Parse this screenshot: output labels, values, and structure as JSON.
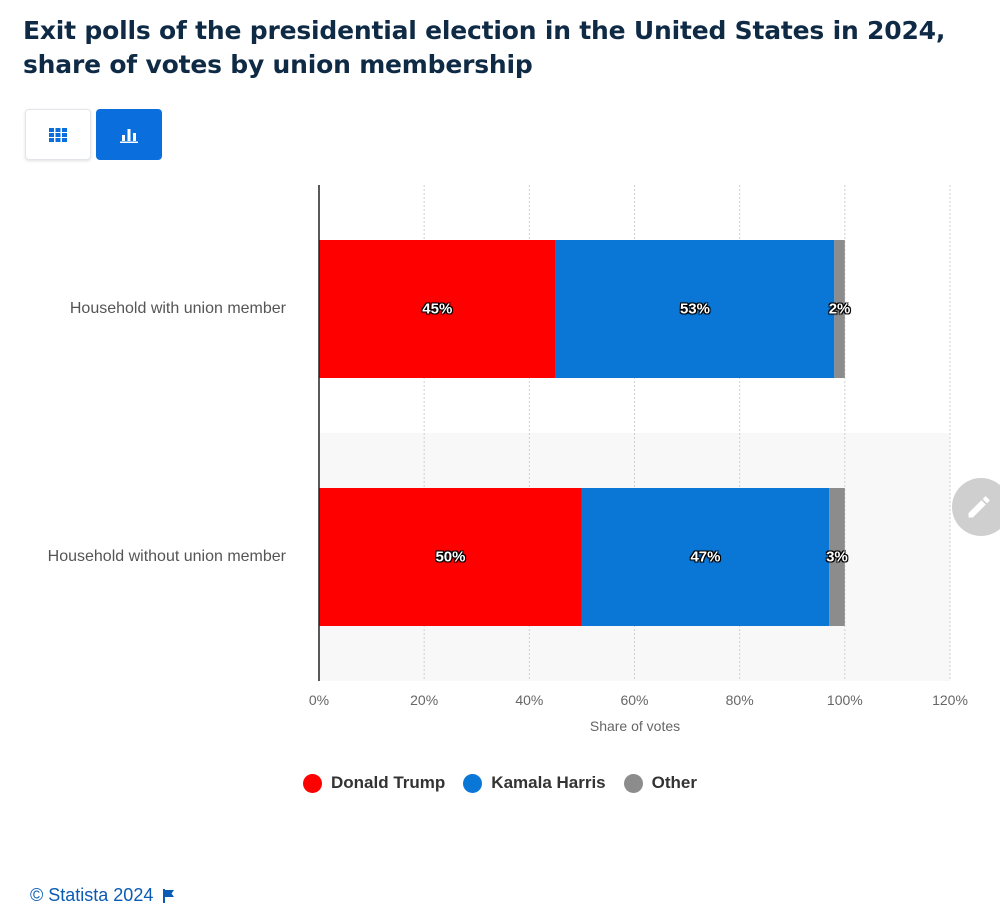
{
  "title": "Exit polls of the presidential election in the United States in 2024, share of votes by union membership",
  "toolbar": {
    "table_view_icon": "grid-icon",
    "chart_view_icon": "bar-chart-icon"
  },
  "edit_icon": "pencil-icon",
  "footer": {
    "copyright": "© Statista 2024",
    "flag_icon": "flag-icon"
  },
  "chart_data": {
    "type": "bar",
    "orientation": "horizontal",
    "stacked": true,
    "title": "Exit polls of the presidential election in the United States in 2024, share of votes by union membership",
    "categories": [
      "Household with union member",
      "Household without union member"
    ],
    "series": [
      {
        "name": "Donald Trump",
        "color": "#ff0000",
        "values": [
          45,
          50
        ],
        "labels": [
          "45%",
          "50%"
        ]
      },
      {
        "name": "Kamala Harris",
        "color": "#0a77d6",
        "values": [
          53,
          47
        ],
        "labels": [
          "53%",
          "47%"
        ]
      },
      {
        "name": "Other",
        "color": "#8c8c8c",
        "values": [
          2,
          3
        ],
        "labels": [
          "2%",
          "3%"
        ]
      }
    ],
    "xlabel": "Share of votes",
    "ylabel": "",
    "xlim": [
      0,
      120
    ],
    "xticks": [
      0,
      20,
      40,
      60,
      80,
      100,
      120
    ],
    "xtick_labels": [
      "0%",
      "20%",
      "40%",
      "60%",
      "80%",
      "100%",
      "120%"
    ],
    "grid": true,
    "legend_position": "bottom-center"
  }
}
